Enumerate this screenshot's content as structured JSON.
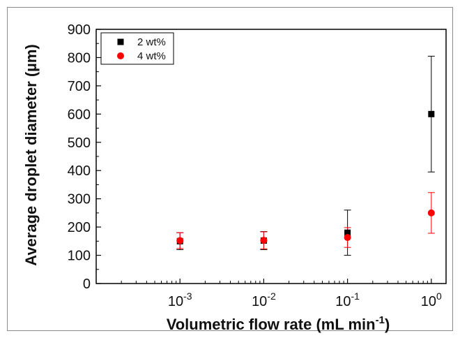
{
  "chart_data": {
    "type": "scatter",
    "xlabel": "Volumetric flow rate (mL min",
    "xlabel_superscript": "-1",
    "xlabel_suffix": ")",
    "ylabel": "Average droplet diameter (µm)",
    "x_scale": "log",
    "xlim": [
      0.0001,
      1.5
    ],
    "ylim": [
      0,
      900
    ],
    "y_ticks": [
      0,
      100,
      200,
      300,
      400,
      500,
      600,
      700,
      800,
      900
    ],
    "x_ticks": [
      {
        "value": 0.001,
        "base": "10",
        "exp": "-3"
      },
      {
        "value": 0.01,
        "base": "10",
        "exp": "-2"
      },
      {
        "value": 0.1,
        "base": "10",
        "exp": "-1"
      },
      {
        "value": 1,
        "base": "10",
        "exp": "0"
      }
    ],
    "legend_position": "top-left",
    "grid": false,
    "series": [
      {
        "name": "2 wt%",
        "marker": "square",
        "color": "#000000",
        "points": [
          {
            "x": 0.001,
            "y": 150,
            "err": 30
          },
          {
            "x": 0.01,
            "y": 152,
            "err": 32
          },
          {
            "x": 0.1,
            "y": 180,
            "err": 80
          },
          {
            "x": 1,
            "y": 600,
            "err": 205
          }
        ]
      },
      {
        "name": "4 wt%",
        "marker": "circle",
        "color": "#ff0000",
        "points": [
          {
            "x": 0.001,
            "y": 152,
            "err": 28
          },
          {
            "x": 0.01,
            "y": 153,
            "err": 30
          },
          {
            "x": 0.1,
            "y": 163,
            "err": 35
          },
          {
            "x": 1,
            "y": 250,
            "err": 72
          }
        ]
      }
    ]
  }
}
